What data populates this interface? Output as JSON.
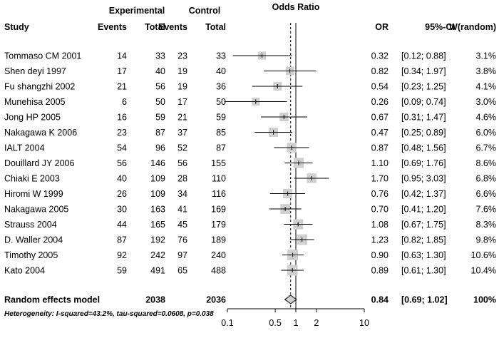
{
  "chart_data": {
    "type": "forest",
    "title": "Odds Ratio",
    "group_headers": {
      "experimental": "Experimental",
      "control": "Control"
    },
    "columns": {
      "study": "Study",
      "events_e": "Events",
      "total_e": "Total",
      "events_c": "Events",
      "total_c": "Total",
      "or": "OR",
      "ci": "95%-CI",
      "weight": "W(random)"
    },
    "studies": [
      {
        "study": "Tommaso CM 2001",
        "events_e": "14",
        "total_e": "33",
        "events_c": "23",
        "total_c": "33",
        "or": 0.32,
        "ci_low": 0.12,
        "ci_high": 0.88,
        "or_text": "0.32",
        "ci_text": "[0.12; 0.88]",
        "weight": 3.1,
        "weight_text": "3.1%"
      },
      {
        "study": "Shen deyi 1997",
        "events_e": "17",
        "total_e": "40",
        "events_c": "19",
        "total_c": "40",
        "or": 0.82,
        "ci_low": 0.34,
        "ci_high": 1.97,
        "or_text": "0.82",
        "ci_text": "[0.34; 1.97]",
        "weight": 3.8,
        "weight_text": "3.8%"
      },
      {
        "study": "Fu shangzhi 2002",
        "events_e": "21",
        "total_e": "56",
        "events_c": "19",
        "total_c": "36",
        "or": 0.54,
        "ci_low": 0.23,
        "ci_high": 1.25,
        "or_text": "0.54",
        "ci_text": "[0.23; 1.25]",
        "weight": 4.1,
        "weight_text": "4.1%"
      },
      {
        "study": "Munehisa 2005",
        "events_e": "6",
        "total_e": "50",
        "events_c": "17",
        "total_c": "50",
        "or": 0.26,
        "ci_low": 0.09,
        "ci_high": 0.74,
        "or_text": "0.26",
        "ci_text": "[0.09; 0.74]",
        "weight": 3.0,
        "weight_text": "3.0%"
      },
      {
        "study": "Jong HP 2005",
        "events_e": "16",
        "total_e": "59",
        "events_c": "21",
        "total_c": "59",
        "or": 0.67,
        "ci_low": 0.31,
        "ci_high": 1.47,
        "or_text": "0.67",
        "ci_text": "[0.31; 1.47]",
        "weight": 4.6,
        "weight_text": "4.6%"
      },
      {
        "study": "Nakagawa K 2006",
        "events_e": "23",
        "total_e": "87",
        "events_c": "37",
        "total_c": "85",
        "or": 0.47,
        "ci_low": 0.25,
        "ci_high": 0.89,
        "or_text": "0.47",
        "ci_text": "[0.25; 0.89]",
        "weight": 6.0,
        "weight_text": "6.0%"
      },
      {
        "study": "IALT 2004",
        "events_e": "54",
        "total_e": "96",
        "events_c": "52",
        "total_c": "87",
        "or": 0.87,
        "ci_low": 0.48,
        "ci_high": 1.56,
        "or_text": "0.87",
        "ci_text": "[0.48; 1.56]",
        "weight": 6.7,
        "weight_text": "6.7%"
      },
      {
        "study": "Douillard JY 2006",
        "events_e": "56",
        "total_e": "146",
        "events_c": "56",
        "total_c": "155",
        "or": 1.1,
        "ci_low": 0.69,
        "ci_high": 1.76,
        "or_text": "1.10",
        "ci_text": "[0.69; 1.76]",
        "weight": 8.6,
        "weight_text": "8.6%"
      },
      {
        "study": "Chiaki E 2003",
        "events_e": "40",
        "total_e": "109",
        "events_c": "28",
        "total_c": "110",
        "or": 1.7,
        "ci_low": 0.95,
        "ci_high": 3.03,
        "or_text": "1.70",
        "ci_text": "[0.95; 3.03]",
        "weight": 6.8,
        "weight_text": "6.8%"
      },
      {
        "study": "Hiromi W 1999",
        "events_e": "26",
        "total_e": "109",
        "events_c": "34",
        "total_c": "116",
        "or": 0.76,
        "ci_low": 0.42,
        "ci_high": 1.37,
        "or_text": "0.76",
        "ci_text": "[0.42; 1.37]",
        "weight": 6.6,
        "weight_text": "6.6%"
      },
      {
        "study": "Nakagawa 2005",
        "events_e": "30",
        "total_e": "163",
        "events_c": "41",
        "total_c": "169",
        "or": 0.7,
        "ci_low": 0.41,
        "ci_high": 1.2,
        "or_text": "0.70",
        "ci_text": "[0.41; 1.20]",
        "weight": 7.6,
        "weight_text": "7.6%"
      },
      {
        "study": "Strauss 2004",
        "events_e": "44",
        "total_e": "165",
        "events_c": "45",
        "total_c": "179",
        "or": 1.08,
        "ci_low": 0.67,
        "ci_high": 1.75,
        "or_text": "1.08",
        "ci_text": "[0.67; 1.75]",
        "weight": 8.3,
        "weight_text": "8.3%"
      },
      {
        "study": "D. Waller 2004",
        "events_e": "87",
        "total_e": "192",
        "events_c": "76",
        "total_c": "189",
        "or": 1.23,
        "ci_low": 0.82,
        "ci_high": 1.85,
        "or_text": "1.23",
        "ci_text": "[0.82; 1.85]",
        "weight": 9.8,
        "weight_text": "9.8%"
      },
      {
        "study": "Timothy 2005",
        "events_e": "92",
        "total_e": "242",
        "events_c": "97",
        "total_c": "240",
        "or": 0.9,
        "ci_low": 0.63,
        "ci_high": 1.3,
        "or_text": "0.90",
        "ci_text": "[0.63; 1.30]",
        "weight": 10.6,
        "weight_text": "10.6%"
      },
      {
        "study": "Kato 2004",
        "events_e": "59",
        "total_e": "491",
        "events_c": "65",
        "total_c": "488",
        "or": 0.89,
        "ci_low": 0.61,
        "ci_high": 1.3,
        "or_text": "0.89",
        "ci_text": "[0.61; 1.30]",
        "weight": 10.4,
        "weight_text": "10.4%"
      }
    ],
    "summary": {
      "label": "Random effects model",
      "total_e": "2038",
      "total_c": "2036",
      "or": 0.84,
      "ci_low": 0.69,
      "ci_high": 1.02,
      "or_text": "0.84",
      "ci_text": "[0.69; 1.02]",
      "weight_text": "100%"
    },
    "heterogeneity": "Heterogeneity: I-squared=43.2%, tau-squared=0.0608, p=0.038",
    "x_axis": {
      "scale": "log",
      "ticks": [
        0.1,
        0.5,
        1,
        2,
        10
      ],
      "tick_labels": [
        "0.1",
        "0.5",
        "1",
        "2",
        "10"
      ],
      "range": [
        0.1,
        10
      ]
    },
    "colors": {
      "box": "#d0d0d0",
      "line": "#000000"
    }
  }
}
